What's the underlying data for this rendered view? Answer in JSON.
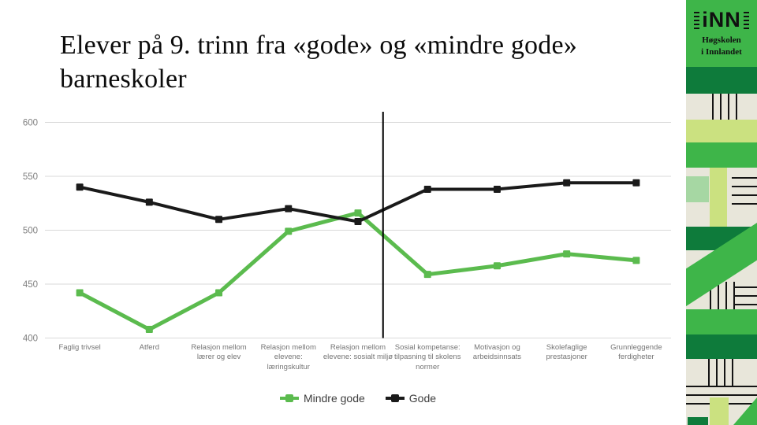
{
  "slide": {
    "title": "Elever på 9. trinn fra «gode» og «mindre gode» barneskoler"
  },
  "branding": {
    "logo_text": "iNN",
    "institution_line1": "Høgskolen",
    "institution_line2": "i Innlandet"
  },
  "colors": {
    "banner_green": "#3eb549",
    "banner_dark_green": "#0e7b3b",
    "banner_cream": "#e8e6da",
    "banner_lime": "#cbe180",
    "banner_pale_green": "#a6d7a3",
    "series_mindre_gode": "#5bbb4e",
    "series_gode": "#1a1a1a",
    "gridline": "#d9d9d9",
    "axis_text": "#7f7f7f"
  },
  "chart_data": {
    "type": "line",
    "title": "",
    "categories": [
      "Faglig trivsel",
      "Atferd",
      "Relasjon mellom lærer og elev",
      "Relasjon mellom elevene: læringskultur",
      "Relasjon mellom elevene: sosialt miljø",
      "Sosial kompetanse: tilpasning til skolens normer",
      "Motivasjon og arbeidsinnsats",
      "Skolefaglige prestasjoner",
      "Grunnleggende ferdigheter"
    ],
    "series": [
      {
        "name": "Mindre gode",
        "color": "#5bbb4e",
        "values": [
          442,
          408,
          442,
          499,
          516,
          459,
          467,
          478,
          472
        ]
      },
      {
        "name": "Gode",
        "color": "#1a1a1a",
        "values": [
          540,
          526,
          510,
          520,
          508,
          538,
          538,
          544,
          544
        ]
      }
    ],
    "ylim": [
      400,
      600
    ],
    "yticks": [
      400,
      450,
      500,
      550,
      600
    ],
    "grid": true,
    "legend_position": "bottom",
    "marker": "square",
    "vertical_divider": {
      "between_categories": [
        "Relasjon mellom elevene: sosialt miljø",
        "Sosial kompetanse: tilpasning til skolens normer"
      ],
      "x_fraction": 0.54
    }
  }
}
